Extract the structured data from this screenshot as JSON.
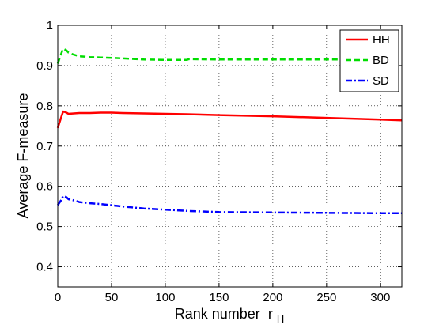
{
  "chart_data": {
    "type": "line",
    "xlabel": "Rank number",
    "xlabel_subscript": "r",
    "xlabel_sub": "H",
    "ylabel": "Average F-measure",
    "xlim": [
      0,
      320
    ],
    "ylim": [
      0.35,
      1
    ],
    "xticks": [
      0,
      50,
      100,
      150,
      200,
      250,
      300
    ],
    "yticks": [
      0.4,
      0.5,
      0.6,
      0.7,
      0.8,
      0.9,
      1
    ],
    "ytick_labels": [
      "0.4",
      "0.5",
      "0.6",
      "0.7",
      "0.8",
      "0.9",
      "1"
    ],
    "grid": true,
    "legend_position": "top-right",
    "series": [
      {
        "name": "HH",
        "color": "#ff0000",
        "style": "solid",
        "x": [
          0,
          3,
          5,
          8,
          10,
          15,
          20,
          30,
          40,
          50,
          60,
          80,
          100,
          120,
          150,
          200,
          250,
          300,
          320
        ],
        "y": [
          0.745,
          0.77,
          0.786,
          0.783,
          0.78,
          0.781,
          0.782,
          0.782,
          0.783,
          0.783,
          0.782,
          0.781,
          0.78,
          0.779,
          0.777,
          0.774,
          0.77,
          0.766,
          0.764
        ]
      },
      {
        "name": "BD",
        "color": "#00dd00",
        "style": "dashed",
        "x": [
          0,
          3,
          5,
          8,
          10,
          15,
          20,
          30,
          40,
          50,
          60,
          80,
          100,
          120,
          122,
          150,
          200,
          250,
          300,
          320
        ],
        "y": [
          0.905,
          0.928,
          0.942,
          0.938,
          0.932,
          0.927,
          0.923,
          0.921,
          0.92,
          0.919,
          0.918,
          0.915,
          0.914,
          0.914,
          0.916,
          0.915,
          0.915,
          0.915,
          0.915,
          0.915
        ]
      },
      {
        "name": "SD",
        "color": "#0000ff",
        "style": "dashdot",
        "x": [
          0,
          3,
          5,
          8,
          10,
          15,
          20,
          30,
          40,
          50,
          60,
          80,
          100,
          120,
          150,
          200,
          250,
          300,
          320
        ],
        "y": [
          0.553,
          0.565,
          0.576,
          0.573,
          0.568,
          0.565,
          0.561,
          0.558,
          0.556,
          0.553,
          0.55,
          0.545,
          0.542,
          0.539,
          0.536,
          0.535,
          0.534,
          0.533,
          0.533
        ]
      }
    ]
  }
}
